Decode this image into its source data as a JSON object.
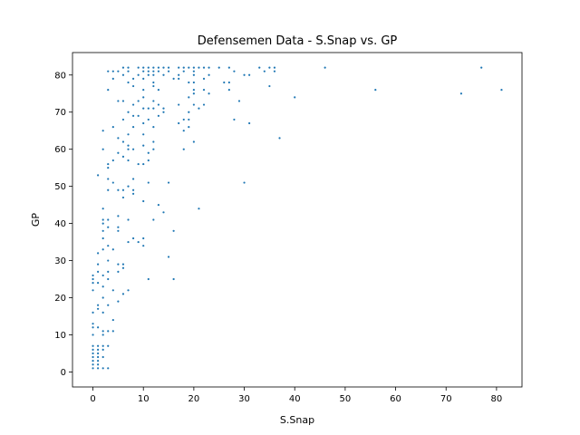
{
  "chart_data": {
    "type": "scatter",
    "title": "Defensemen Data - S.Snap vs. GP",
    "xlabel": "S.Snap",
    "ylabel": "GP",
    "xlim": [
      -4.05,
      85.05
    ],
    "ylim": [
      -4.05,
      86.05
    ],
    "xticks": [
      0,
      10,
      20,
      30,
      40,
      50,
      60,
      70,
      80
    ],
    "yticks": [
      0,
      10,
      20,
      30,
      40,
      50,
      60,
      70,
      80
    ],
    "grid": false,
    "point_color": "#1f77b4",
    "points": [
      [
        0,
        1
      ],
      [
        0,
        2
      ],
      [
        0,
        3
      ],
      [
        0,
        4
      ],
      [
        0,
        5
      ],
      [
        0,
        6
      ],
      [
        0,
        7
      ],
      [
        0,
        10
      ],
      [
        0,
        12
      ],
      [
        0,
        13
      ],
      [
        0,
        16
      ],
      [
        0,
        22
      ],
      [
        0,
        24
      ],
      [
        0,
        25
      ],
      [
        0,
        26
      ],
      [
        1,
        1
      ],
      [
        1,
        2
      ],
      [
        1,
        3
      ],
      [
        1,
        4
      ],
      [
        1,
        5
      ],
      [
        1,
        6
      ],
      [
        1,
        7
      ],
      [
        1,
        12
      ],
      [
        1,
        17
      ],
      [
        1,
        18
      ],
      [
        1,
        24
      ],
      [
        1,
        27
      ],
      [
        1,
        29
      ],
      [
        1,
        32
      ],
      [
        1,
        53
      ],
      [
        2,
        1
      ],
      [
        2,
        4
      ],
      [
        2,
        6
      ],
      [
        2,
        7
      ],
      [
        2,
        10
      ],
      [
        2,
        11
      ],
      [
        2,
        16
      ],
      [
        2,
        20
      ],
      [
        2,
        23
      ],
      [
        2,
        26
      ],
      [
        2,
        33
      ],
      [
        2,
        36
      ],
      [
        2,
        38
      ],
      [
        2,
        40
      ],
      [
        2,
        41
      ],
      [
        2,
        44
      ],
      [
        2,
        60
      ],
      [
        2,
        65
      ],
      [
        3,
        1
      ],
      [
        3,
        7
      ],
      [
        3,
        11
      ],
      [
        3,
        18
      ],
      [
        3,
        25
      ],
      [
        3,
        27
      ],
      [
        3,
        30
      ],
      [
        3,
        34
      ],
      [
        3,
        39
      ],
      [
        3,
        41
      ],
      [
        3,
        49
      ],
      [
        3,
        52
      ],
      [
        3,
        55
      ],
      [
        3,
        56
      ],
      [
        3,
        76
      ],
      [
        3,
        81
      ],
      [
        4,
        11
      ],
      [
        4,
        14
      ],
      [
        4,
        22
      ],
      [
        4,
        33
      ],
      [
        4,
        51
      ],
      [
        4,
        57
      ],
      [
        4,
        66
      ],
      [
        4,
        79
      ],
      [
        4,
        81
      ],
      [
        5,
        19
      ],
      [
        5,
        27
      ],
      [
        5,
        29
      ],
      [
        5,
        38
      ],
      [
        5,
        39
      ],
      [
        5,
        42
      ],
      [
        5,
        49
      ],
      [
        5,
        59
      ],
      [
        5,
        63
      ],
      [
        5,
        73
      ],
      [
        5,
        81
      ],
      [
        6,
        21
      ],
      [
        6,
        28
      ],
      [
        6,
        29
      ],
      [
        6,
        47
      ],
      [
        6,
        49
      ],
      [
        6,
        58
      ],
      [
        6,
        62
      ],
      [
        6,
        68
      ],
      [
        6,
        73
      ],
      [
        6,
        80
      ],
      [
        6,
        82
      ],
      [
        7,
        22
      ],
      [
        7,
        35
      ],
      [
        7,
        41
      ],
      [
        7,
        50
      ],
      [
        7,
        57
      ],
      [
        7,
        60
      ],
      [
        7,
        61
      ],
      [
        7,
        64
      ],
      [
        7,
        70
      ],
      [
        7,
        78
      ],
      [
        7,
        81
      ],
      [
        7,
        82
      ],
      [
        8,
        36
      ],
      [
        8,
        48
      ],
      [
        8,
        49
      ],
      [
        8,
        52
      ],
      [
        8,
        60
      ],
      [
        8,
        66
      ],
      [
        8,
        69
      ],
      [
        8,
        72
      ],
      [
        8,
        77
      ],
      [
        8,
        79
      ],
      [
        9,
        35
      ],
      [
        9,
        56
      ],
      [
        9,
        69
      ],
      [
        9,
        73
      ],
      [
        9,
        80
      ],
      [
        9,
        82
      ],
      [
        10,
        34
      ],
      [
        10,
        36
      ],
      [
        10,
        46
      ],
      [
        10,
        56
      ],
      [
        10,
        61
      ],
      [
        10,
        64
      ],
      [
        10,
        67
      ],
      [
        10,
        71
      ],
      [
        10,
        74
      ],
      [
        10,
        76
      ],
      [
        10,
        79
      ],
      [
        10,
        81
      ],
      [
        10,
        82
      ],
      [
        11,
        25
      ],
      [
        11,
        51
      ],
      [
        11,
        57
      ],
      [
        11,
        59
      ],
      [
        11,
        68
      ],
      [
        11,
        71
      ],
      [
        11,
        80
      ],
      [
        11,
        81
      ],
      [
        11,
        82
      ],
      [
        12,
        41
      ],
      [
        12,
        60
      ],
      [
        12,
        62
      ],
      [
        12,
        66
      ],
      [
        12,
        71
      ],
      [
        12,
        73
      ],
      [
        12,
        77
      ],
      [
        12,
        78
      ],
      [
        12,
        80
      ],
      [
        12,
        81
      ],
      [
        12,
        82
      ],
      [
        13,
        45
      ],
      [
        13,
        69
      ],
      [
        13,
        72
      ],
      [
        13,
        76
      ],
      [
        13,
        81
      ],
      [
        13,
        82
      ],
      [
        14,
        43
      ],
      [
        14,
        70
      ],
      [
        14,
        71
      ],
      [
        14,
        80
      ],
      [
        14,
        82
      ],
      [
        15,
        31
      ],
      [
        15,
        51
      ],
      [
        15,
        81
      ],
      [
        15,
        82
      ],
      [
        16,
        25
      ],
      [
        16,
        38
      ],
      [
        16,
        79
      ],
      [
        17,
        67
      ],
      [
        17,
        72
      ],
      [
        17,
        79
      ],
      [
        17,
        80
      ],
      [
        17,
        82
      ],
      [
        18,
        60
      ],
      [
        18,
        65
      ],
      [
        18,
        68
      ],
      [
        18,
        81
      ],
      [
        18,
        82
      ],
      [
        19,
        66
      ],
      [
        19,
        68
      ],
      [
        19,
        70
      ],
      [
        19,
        74
      ],
      [
        19,
        78
      ],
      [
        19,
        82
      ],
      [
        20,
        62
      ],
      [
        20,
        72
      ],
      [
        20,
        75
      ],
      [
        20,
        76
      ],
      [
        20,
        78
      ],
      [
        20,
        80
      ],
      [
        20,
        81
      ],
      [
        20,
        82
      ],
      [
        21,
        44
      ],
      [
        21,
        71
      ],
      [
        21,
        82
      ],
      [
        22,
        72
      ],
      [
        22,
        76
      ],
      [
        22,
        79
      ],
      [
        22,
        82
      ],
      [
        23,
        75
      ],
      [
        23,
        80
      ],
      [
        23,
        82
      ],
      [
        25,
        82
      ],
      [
        26,
        78
      ],
      [
        27,
        76
      ],
      [
        27,
        78
      ],
      [
        27,
        82
      ],
      [
        28,
        68
      ],
      [
        28,
        81
      ],
      [
        29,
        73
      ],
      [
        30,
        51
      ],
      [
        30,
        80
      ],
      [
        31,
        67
      ],
      [
        31,
        80
      ],
      [
        33,
        82
      ],
      [
        34,
        81
      ],
      [
        35,
        77
      ],
      [
        35,
        82
      ],
      [
        36,
        81
      ],
      [
        36,
        82
      ],
      [
        37,
        63
      ],
      [
        40,
        74
      ],
      [
        46,
        82
      ],
      [
        56,
        76
      ],
      [
        73,
        75
      ],
      [
        77,
        82
      ],
      [
        81,
        76
      ]
    ]
  }
}
